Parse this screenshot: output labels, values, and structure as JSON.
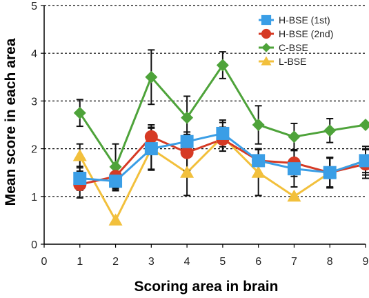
{
  "chart_data": {
    "type": "line",
    "title": "",
    "xlabel": "Scoring area in brain",
    "ylabel": "Mean score in each area",
    "xlim": [
      0,
      9
    ],
    "ylim": [
      0,
      5
    ],
    "x_ticks": [
      "0",
      "1",
      "2",
      "3",
      "4",
      "5",
      "6",
      "7",
      "8",
      "9"
    ],
    "y_ticks": [
      "0",
      "1",
      "2",
      "3",
      "4",
      "5"
    ],
    "grid": "horizontal dotted",
    "legend_position": "top-right",
    "x": [
      1,
      2,
      3,
      4,
      5,
      6,
      7,
      8,
      9
    ],
    "series": [
      {
        "name": "H-BSE (1st)",
        "color": "#3a9ee6",
        "marker": "square",
        "values": [
          1.38,
          1.32,
          2.0,
          2.15,
          2.32,
          1.75,
          1.58,
          1.5,
          1.75
        ],
        "error": [
          0.25,
          0.2,
          0.45,
          0.2,
          0.28,
          0.25,
          0.38,
          0.32,
          0.25
        ]
      },
      {
        "name": "H-BSE (2nd)",
        "color": "#d63a24",
        "marker": "circle",
        "values": [
          1.25,
          1.42,
          2.25,
          1.92,
          2.2,
          1.75,
          1.7,
          1.5,
          1.68
        ],
        "error": [
          0.28,
          0.25,
          0.25,
          0.38,
          0.25,
          0.25,
          0.28,
          0.32,
          0.3
        ]
      },
      {
        "name": "C-BSE",
        "color": "#4ea33a",
        "marker": "diamond",
        "values": [
          2.75,
          1.62,
          3.5,
          2.65,
          3.75,
          2.5,
          2.25,
          2.38,
          2.5
        ],
        "error": [
          0.28,
          0.48,
          0.57,
          0.45,
          0.28,
          0.4,
          0.28,
          0.25,
          0.0
        ]
      },
      {
        "name": "L-BSE",
        "color": "#f2c03c",
        "marker": "triangle",
        "values": [
          1.85,
          0.5,
          2.0,
          1.5,
          2.25,
          1.5,
          1.0,
          1.5,
          1.75
        ],
        "error": [
          0.25,
          0.0,
          0.43,
          0.48,
          0.3,
          0.48,
          0.0,
          0.3,
          0.3
        ]
      }
    ]
  }
}
